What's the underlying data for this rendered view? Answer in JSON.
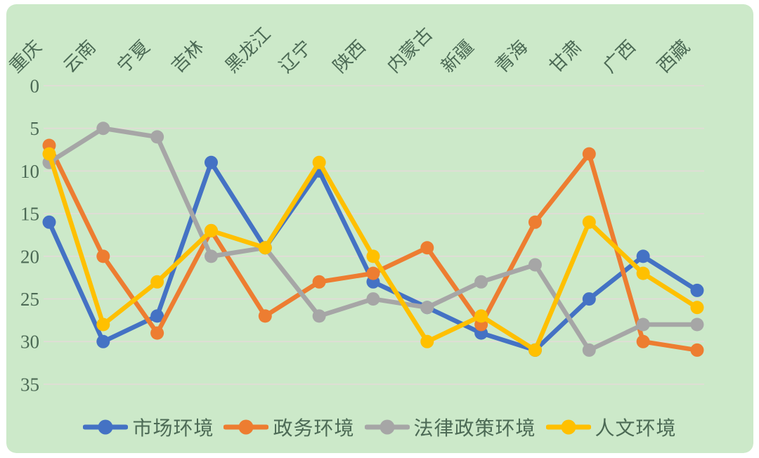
{
  "chart_data": {
    "type": "line",
    "title": "",
    "categories": [
      "重庆",
      "云南",
      "宁夏",
      "吉林",
      "黑龙江",
      "辽宁",
      "陕西",
      "内蒙古",
      "新疆",
      "青海",
      "甘肃",
      "广西",
      "西藏"
    ],
    "series": [
      {
        "name": "市场环境",
        "color": "#4472C4",
        "values": [
          16,
          30,
          27,
          9,
          19,
          10,
          23,
          26,
          29,
          31,
          25,
          20,
          24
        ]
      },
      {
        "name": "政务环境",
        "color": "#ED7D31",
        "values": [
          7,
          20,
          29,
          17,
          27,
          23,
          22,
          19,
          28,
          16,
          8,
          30,
          31
        ]
      },
      {
        "name": "法律政策环境",
        "color": "#A6A6A6",
        "values": [
          9,
          5,
          6,
          20,
          19,
          27,
          25,
          26,
          23,
          21,
          31,
          28,
          28
        ]
      },
      {
        "name": "人文环境",
        "color": "#FFC000",
        "values": [
          8,
          28,
          23,
          17,
          19,
          9,
          20,
          30,
          27,
          31,
          16,
          22,
          26
        ]
      }
    ],
    "y_axis": {
      "min": 0,
      "max": 35,
      "step": 5,
      "ticks": [
        "0",
        "5",
        "10",
        "15",
        "20",
        "25",
        "30",
        "35"
      ],
      "inverted": true
    },
    "x_axis": {
      "label_rotation_deg": -45
    },
    "grid": true,
    "legend_position": "bottom"
  },
  "colors": {
    "outer_background": "#FFFFFF",
    "panel_background": "#CCE9C9",
    "axis_text": "#4C6A55",
    "gridline": "#E6DADA"
  }
}
